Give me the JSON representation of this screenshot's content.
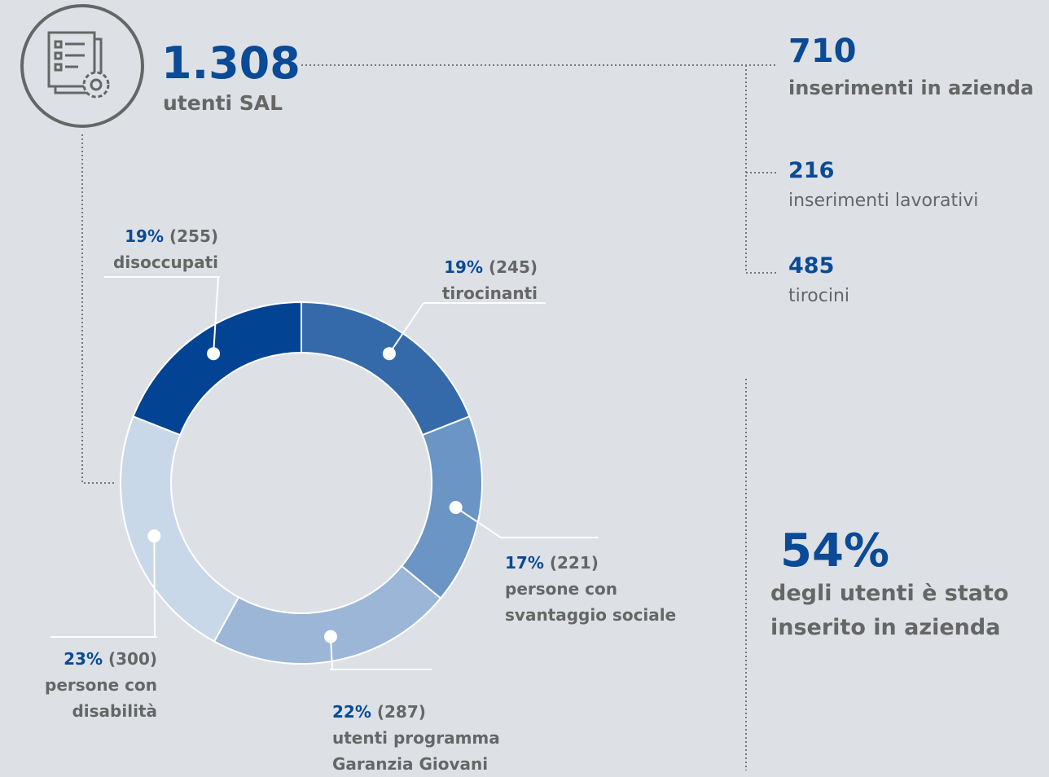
{
  "header": {
    "total": "1.308",
    "total_label": "utenti SAL"
  },
  "stats": [
    {
      "value": 710,
      "label": "inserimenti in azienda"
    },
    {
      "value": 216,
      "label": "inserimenti lavorativi"
    },
    {
      "value": 485,
      "label": "tirocini"
    }
  ],
  "highlight": {
    "value": "54%",
    "label": "degli utenti è stato\ninserito in azienda"
  },
  "chart_data": {
    "type": "donut",
    "categories": [
      "tirocinanti",
      "persone con\nsvantaggio sociale",
      "utenti programma\nGaranzia Giovani",
      "persone con\ndisabilità",
      "disoccupati"
    ],
    "values": [
      19,
      17,
      22,
      23,
      19
    ],
    "value_labels": [
      "19%",
      "17%",
      "22%",
      "23%",
      "19%"
    ],
    "counts": [
      245,
      221,
      287,
      300,
      255
    ],
    "count_labels": [
      "(245)",
      "(221)",
      "(287)",
      "(300)",
      "(255)"
    ],
    "colors": [
      "#346aaa",
      "#6a95c4",
      "#9bb6d6",
      "#c9d8e8",
      "#024493"
    ]
  }
}
